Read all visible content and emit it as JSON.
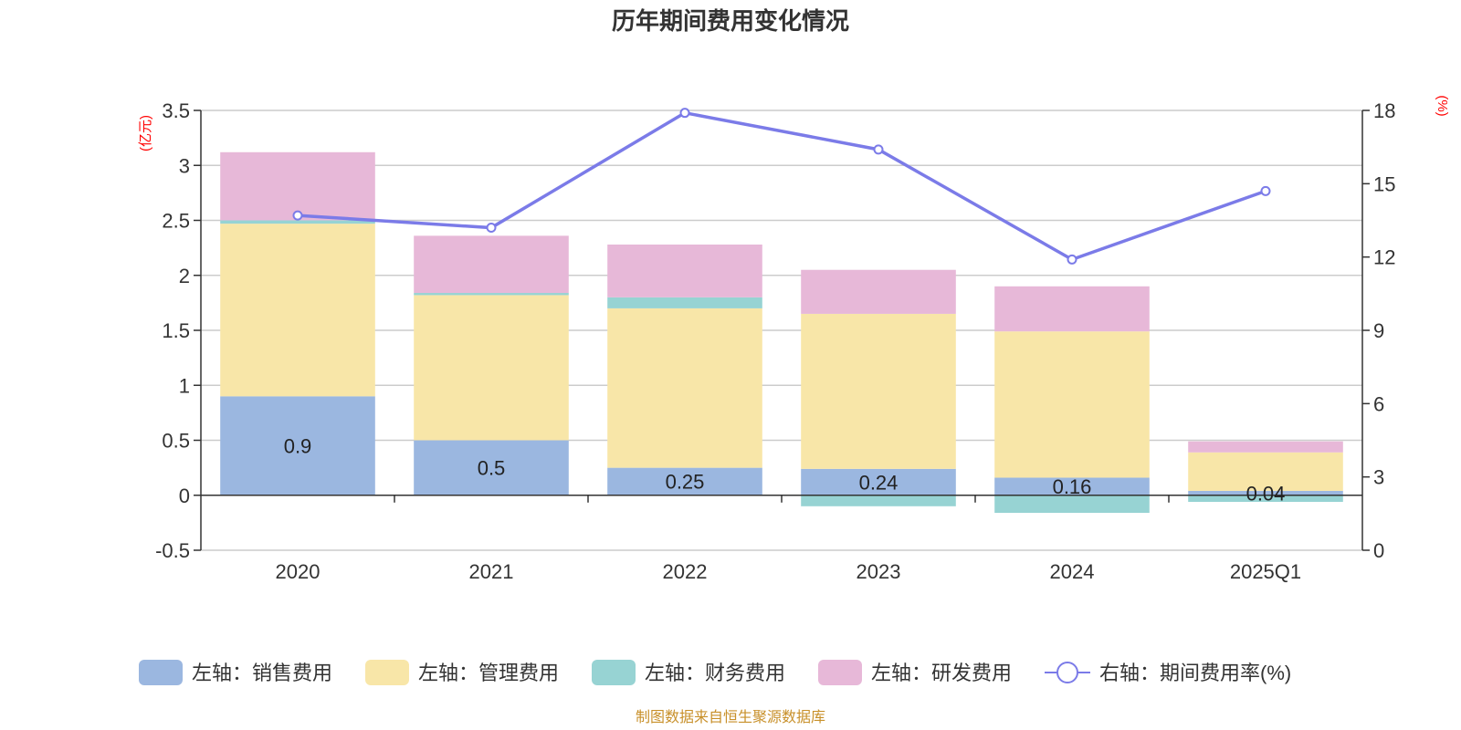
{
  "chart_data": {
    "type": "bar",
    "stacked": true,
    "title": "历年期间费用变化情况",
    "categories": [
      "2020",
      "2021",
      "2022",
      "2023",
      "2024",
      "2025Q1"
    ],
    "left_axis": {
      "unit": "(亿元)",
      "ylim": [
        -0.5,
        3.5
      ],
      "ticks": [
        -0.5,
        0,
        0.5,
        1,
        1.5,
        2,
        2.5,
        3,
        3.5
      ],
      "tick_labels": [
        "-0.5",
        "0",
        "0.5",
        "1",
        "1.5",
        "2",
        "2.5",
        "3",
        "3.5"
      ]
    },
    "right_axis": {
      "unit": "(%)",
      "ylim": [
        0,
        18
      ],
      "ticks": [
        0,
        3,
        6,
        9,
        12,
        15,
        18
      ],
      "tick_labels": [
        "0",
        "3",
        "6",
        "9",
        "12",
        "15",
        "18"
      ]
    },
    "series": [
      {
        "name": "左轴：销售费用",
        "color": "#9bb7e0",
        "values": [
          0.9,
          0.5,
          0.25,
          0.24,
          0.16,
          0.04
        ],
        "labels": [
          "0.9",
          "0.5",
          "0.25",
          "0.24",
          "0.16",
          "0.04"
        ]
      },
      {
        "name": "左轴：管理费用",
        "color": "#f8e6a8",
        "values": [
          1.57,
          1.32,
          1.45,
          1.41,
          1.33,
          0.35
        ]
      },
      {
        "name": "左轴：财务费用",
        "color": "#97d3d3",
        "values": [
          0.03,
          0.02,
          0.1,
          -0.1,
          -0.16,
          -0.06
        ]
      },
      {
        "name": "左轴：研发费用",
        "color": "#e7b8d8",
        "values": [
          0.62,
          0.52,
          0.48,
          0.4,
          0.41,
          0.1
        ]
      }
    ],
    "line": {
      "name": "右轴：期间费用率(%)",
      "color": "#7b7be8",
      "values": [
        13.7,
        13.2,
        17.9,
        16.4,
        11.9,
        14.7
      ]
    },
    "source": "制图数据来自恒生聚源数据库"
  }
}
